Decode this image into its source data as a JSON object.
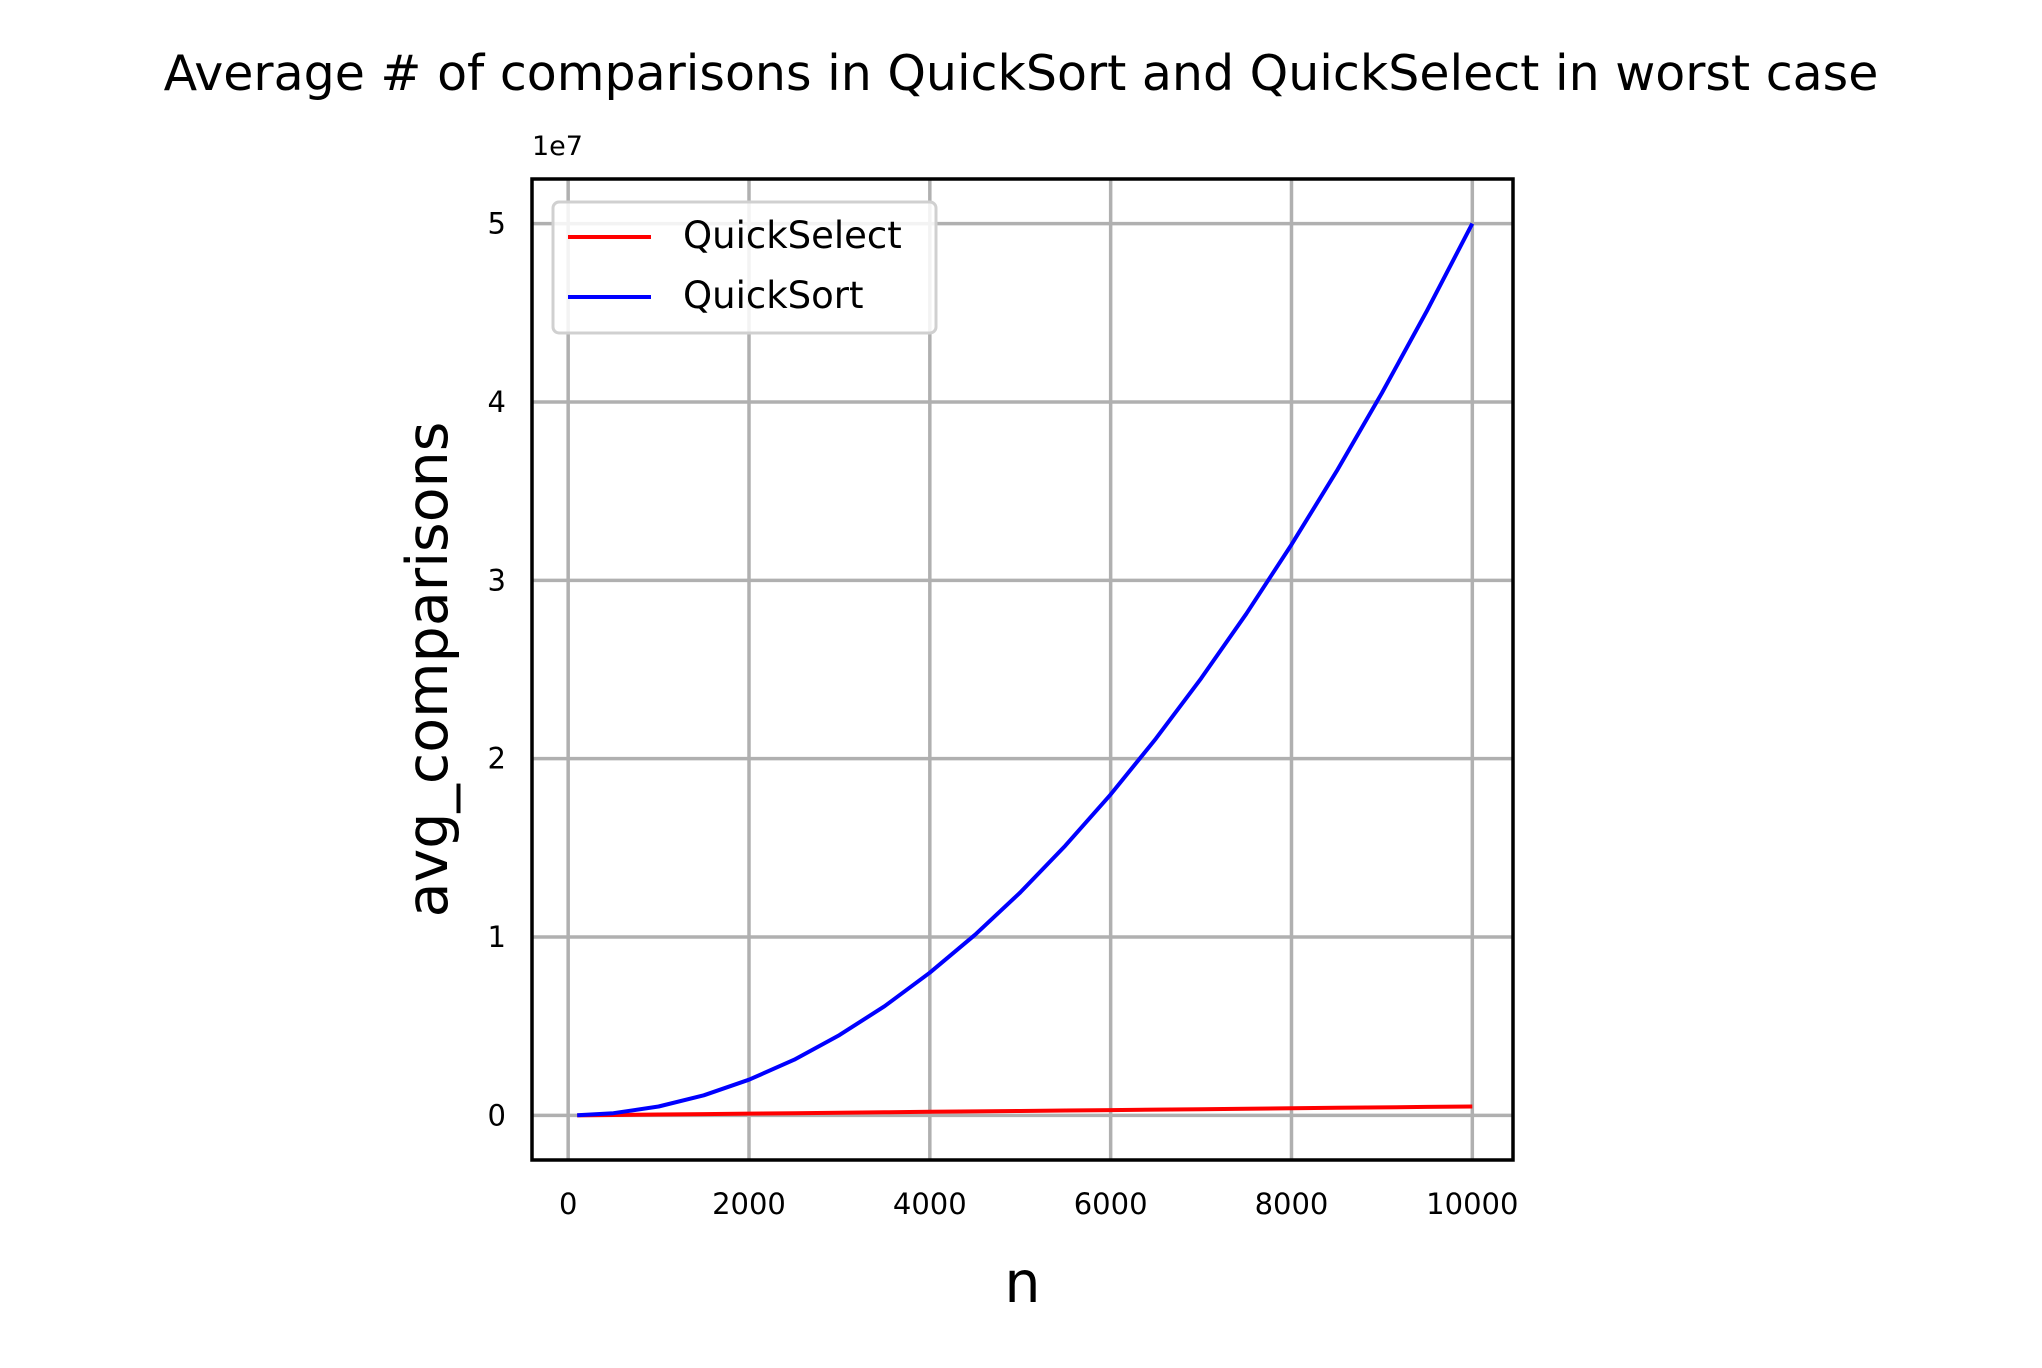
{
  "chart_data": {
    "type": "line",
    "title": "Average # of comparisons in QuickSort and QuickSelect in worst case",
    "xlabel": "n",
    "ylabel": "avg_comparisons",
    "y_offset_label": "1e7",
    "y_multiplier": 10000000,
    "xlim": [
      -400,
      10450
    ],
    "ylim": [
      -0.25,
      5.25
    ],
    "xticks": [
      0,
      2000,
      4000,
      6000,
      8000,
      10000
    ],
    "xtick_labels": [
      "0",
      "2000",
      "4000",
      "6000",
      "8000",
      "10000"
    ],
    "yticks": [
      0,
      1,
      2,
      3,
      4,
      5
    ],
    "ytick_labels": [
      "0",
      "1",
      "2",
      "3",
      "4",
      "5"
    ],
    "grid": true,
    "legend_position": "upper-left",
    "x": [
      100,
      500,
      1000,
      1500,
      2000,
      2500,
      3000,
      3500,
      4000,
      4500,
      5000,
      5500,
      6000,
      6500,
      7000,
      7500,
      8000,
      8500,
      9000,
      9500,
      10000
    ],
    "series": [
      {
        "name": "QuickSelect",
        "color": "#ff0000",
        "values": [
          0.0002,
          0.0025,
          0.005,
          0.0075,
          0.01,
          0.0125,
          0.015,
          0.0175,
          0.02,
          0.0225,
          0.025,
          0.0275,
          0.03,
          0.0325,
          0.035,
          0.0375,
          0.04,
          0.0425,
          0.045,
          0.0475,
          0.05
        ]
      },
      {
        "name": "QuickSort",
        "color": "#0000ff",
        "values": [
          0.0005,
          0.0125,
          0.05,
          0.1125,
          0.2,
          0.3125,
          0.45,
          0.6125,
          0.8,
          1.0125,
          1.25,
          1.5125,
          1.8,
          2.1125,
          2.45,
          2.8125,
          3.2,
          3.6125,
          4.05,
          4.5125,
          5.0
        ]
      }
    ]
  }
}
